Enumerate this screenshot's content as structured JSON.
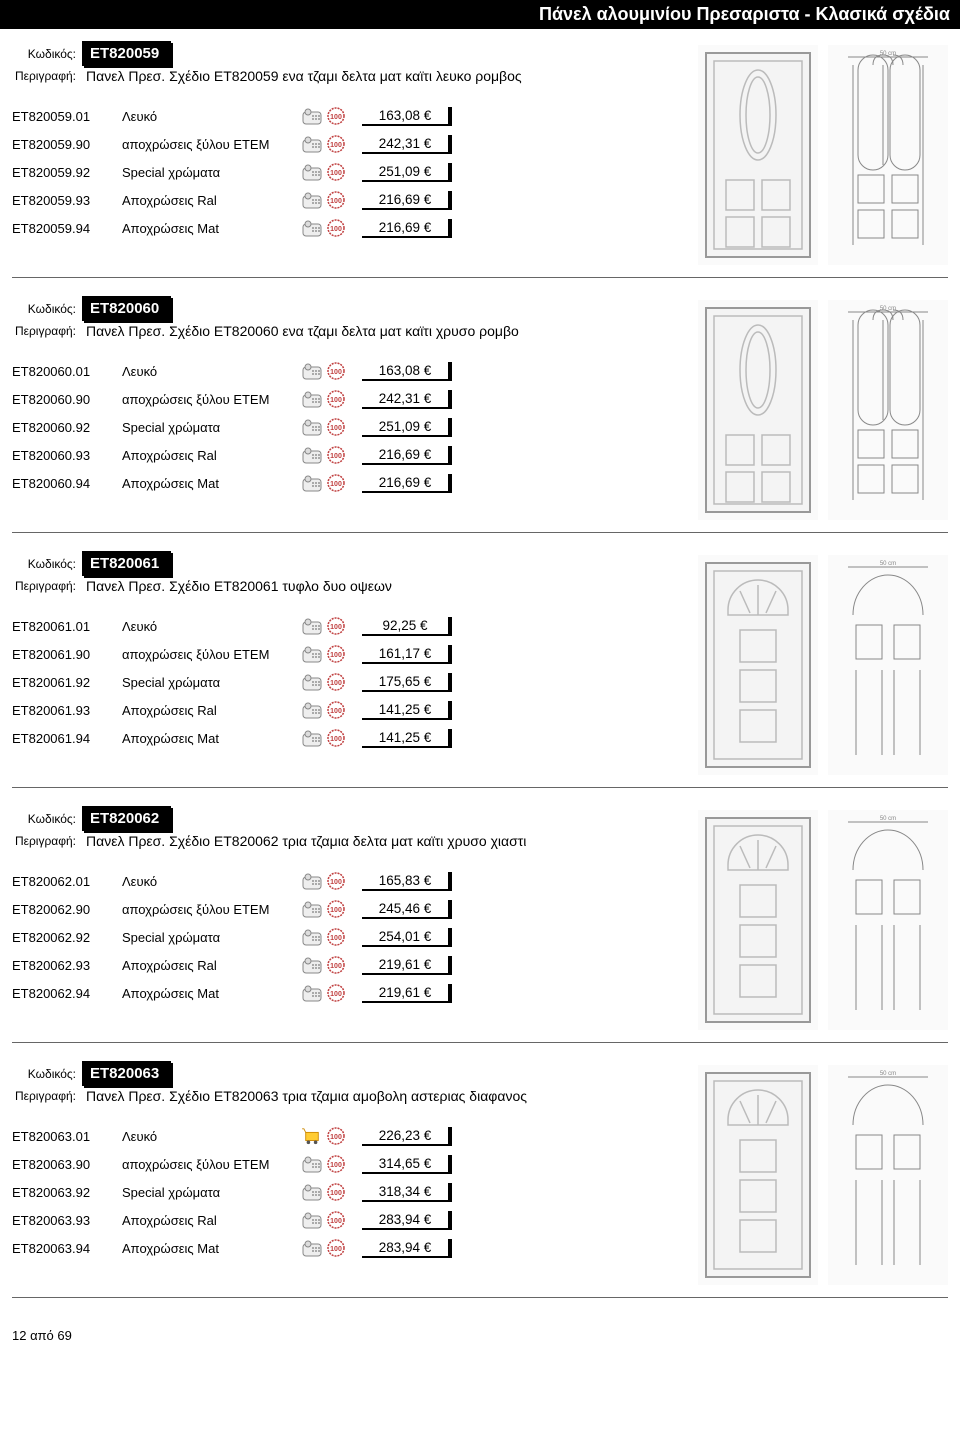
{
  "page_title": "Πάνελ αλουμινίου Πρεσαριστα - Κλασικά σχέδια",
  "labels": {
    "code": "Κωδικός:",
    "desc": "Περιγραφή:"
  },
  "currency": "€",
  "footer": "12 από 69",
  "colors": {
    "header_bg": "#000000",
    "header_fg": "#ffffff",
    "rule": "#666666",
    "door_fill": "#f4f4f4",
    "door_stroke": "#999999",
    "tech_stroke": "#888888",
    "price_border": "#000000"
  },
  "products": [
    {
      "code": "ET820059",
      "desc": "Πανελ Πρεσ. Σχέδιο ΕΤ820059 ενα τζαμι δελτα ματ καϊτι λευκο ρομβος",
      "door_style": "oval_top",
      "variants": [
        {
          "code": "ET820059.01",
          "label": "Λευκό",
          "icon": "phone",
          "price": "163,08 €"
        },
        {
          "code": "ET820059.90",
          "label": "αποχρώσεις ξύλου ETEM",
          "icon": "phone",
          "price": "242,31 €"
        },
        {
          "code": "ET820059.92",
          "label": "Special χρώματα",
          "icon": "phone",
          "price": "251,09 €"
        },
        {
          "code": "ET820059.93",
          "label": "Αποχρώσεις Ral",
          "icon": "phone",
          "price": "216,69 €"
        },
        {
          "code": "ET820059.94",
          "label": "Αποχρώσεις Mat",
          "icon": "phone",
          "price": "216,69 €"
        }
      ]
    },
    {
      "code": "ET820060",
      "desc": "Πανελ Πρεσ. Σχέδιο ΕΤ820060 ενα τζαμι δελτα ματ καϊτι χρυσο ρομβο",
      "door_style": "oval_top",
      "variants": [
        {
          "code": "ET820060.01",
          "label": "Λευκό",
          "icon": "phone",
          "price": "163,08 €"
        },
        {
          "code": "ET820060.90",
          "label": "αποχρώσεις ξύλου ETEM",
          "icon": "phone",
          "price": "242,31 €"
        },
        {
          "code": "ET820060.92",
          "label": "Special χρώματα",
          "icon": "phone",
          "price": "251,09 €"
        },
        {
          "code": "ET820060.93",
          "label": "Αποχρώσεις Ral",
          "icon": "phone",
          "price": "216,69 €"
        },
        {
          "code": "ET820060.94",
          "label": "Αποχρώσεις Mat",
          "icon": "phone",
          "price": "216,69 €"
        }
      ]
    },
    {
      "code": "ET820061",
      "desc": "Πανελ Πρεσ. Σχέδιο ΕΤ820061 τυφλο δυο οψεων",
      "door_style": "arch_top",
      "variants": [
        {
          "code": "ET820061.01",
          "label": "Λευκό",
          "icon": "phone",
          "price": "92,25 €"
        },
        {
          "code": "ET820061.90",
          "label": "αποχρώσεις ξύλου ETEM",
          "icon": "phone",
          "price": "161,17 €"
        },
        {
          "code": "ET820061.92",
          "label": "Special χρώματα",
          "icon": "phone",
          "price": "175,65 €"
        },
        {
          "code": "ET820061.93",
          "label": "Αποχρώσεις Ral",
          "icon": "phone",
          "price": "141,25 €"
        },
        {
          "code": "ET820061.94",
          "label": "Αποχρώσεις Mat",
          "icon": "phone",
          "price": "141,25 €"
        }
      ]
    },
    {
      "code": "ET820062",
      "desc": "Πανελ Πρεσ. Σχέδιο ΕΤ820062 τρια τζαμια δελτα ματ καϊτι χρυσο χιαστι",
      "door_style": "arch_top",
      "variants": [
        {
          "code": "ET820062.01",
          "label": "Λευκό",
          "icon": "phone",
          "price": "165,83 €"
        },
        {
          "code": "ET820062.90",
          "label": "αποχρώσεις ξύλου ETEM",
          "icon": "phone",
          "price": "245,46 €"
        },
        {
          "code": "ET820062.92",
          "label": "Special χρώματα",
          "icon": "phone",
          "price": "254,01 €"
        },
        {
          "code": "ET820062.93",
          "label": "Αποχρώσεις Ral",
          "icon": "phone",
          "price": "219,61 €"
        },
        {
          "code": "ET820062.94",
          "label": "Αποχρώσεις Mat",
          "icon": "phone",
          "price": "219,61 €"
        }
      ]
    },
    {
      "code": "ET820063",
      "desc": "Πανελ Πρεσ. Σχέδιο ΕΤ820063 τρια τζαμια αμοβολη αστεριας διαφανος",
      "door_style": "arch_top",
      "variants": [
        {
          "code": "ET820063.01",
          "label": "Λευκό",
          "icon": "cart",
          "price": "226,23 €"
        },
        {
          "code": "ET820063.90",
          "label": "αποχρώσεις ξύλου ETEM",
          "icon": "phone",
          "price": "314,65 €"
        },
        {
          "code": "ET820063.92",
          "label": "Special χρώματα",
          "icon": "phone",
          "price": "318,34 €"
        },
        {
          "code": "ET820063.93",
          "label": "Αποχρώσεις Ral",
          "icon": "phone",
          "price": "283,94 €"
        },
        {
          "code": "ET820063.94",
          "label": "Αποχρώσεις Mat",
          "icon": "phone",
          "price": "283,94 €"
        }
      ]
    }
  ]
}
